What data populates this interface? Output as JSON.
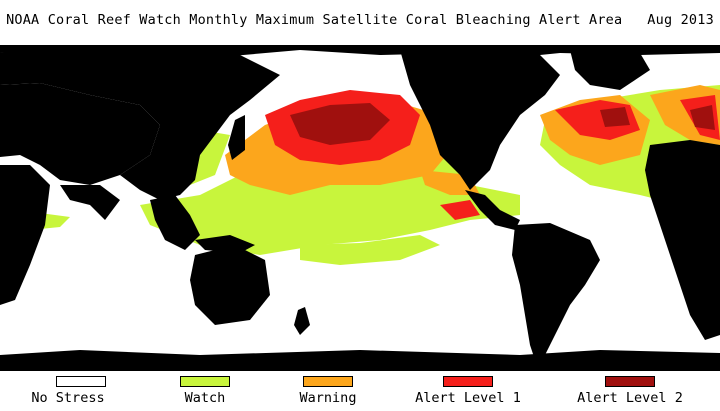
{
  "title": "NOAA Coral Reef Watch Monthly Maximum Satellite Coral Bleaching Alert Area   Aug 2013",
  "colors": {
    "land": "#000000",
    "no_stress": "#ffffff",
    "watch": "#c8f53c",
    "warning": "#fca61c",
    "alert_level_1": "#f51f1b",
    "alert_level_2": "#a0100e"
  },
  "legend": [
    {
      "label": "No Stress",
      "color": "#ffffff"
    },
    {
      "label": "Watch",
      "color": "#c8f53c"
    },
    {
      "label": "Warning",
      "color": "#fca61c"
    },
    {
      "label": "Alert Level 1",
      "color": "#f51f1b"
    },
    {
      "label": "Alert Level 2",
      "color": "#a0100e"
    }
  ]
}
